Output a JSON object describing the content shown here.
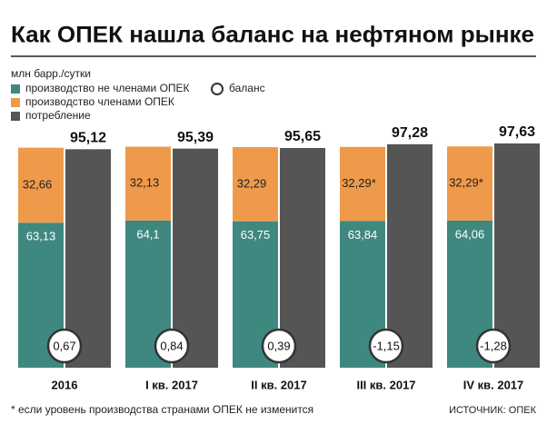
{
  "chart_data": {
    "type": "bar",
    "title": "Как ОПЕК нашла баланс на нефтяном рынке",
    "unit": "млн барр./сутки",
    "categories": [
      "2016",
      "I кв. 2017",
      "II кв. 2017",
      "III кв. 2017",
      "IV кв. 2017"
    ],
    "series": [
      {
        "name": "производство не членами ОПЕК",
        "color": "#3f8880",
        "values": [
          63.13,
          64.1,
          63.75,
          63.84,
          64.06
        ],
        "value_labels": [
          "63,13",
          "64,1",
          "63,75",
          "63,84",
          "64,06"
        ]
      },
      {
        "name": "производство членами ОПЕК",
        "color": "#ef9a4a",
        "values": [
          32.66,
          32.13,
          32.29,
          32.29,
          32.29
        ],
        "value_labels": [
          "32,66",
          "32,13",
          "32,29",
          "32,29*",
          "32,29*"
        ]
      },
      {
        "name": "потребление",
        "color": "#555555",
        "values": [
          95.12,
          95.39,
          95.65,
          97.28,
          97.63
        ],
        "value_labels": [
          "95,12",
          "95,39",
          "95,65",
          "97,28",
          "97,63"
        ]
      }
    ],
    "balance": {
      "name": "баланс",
      "values": [
        0.67,
        0.84,
        0.39,
        -1.15,
        -1.28
      ],
      "value_labels": [
        "0,67",
        "0,84",
        "0,39",
        "-1,15",
        "-1,28"
      ]
    },
    "footnote": "* если уровень производства странами ОПЕК не изменится",
    "source": "ИСТОЧНИК: ОПЕК"
  }
}
